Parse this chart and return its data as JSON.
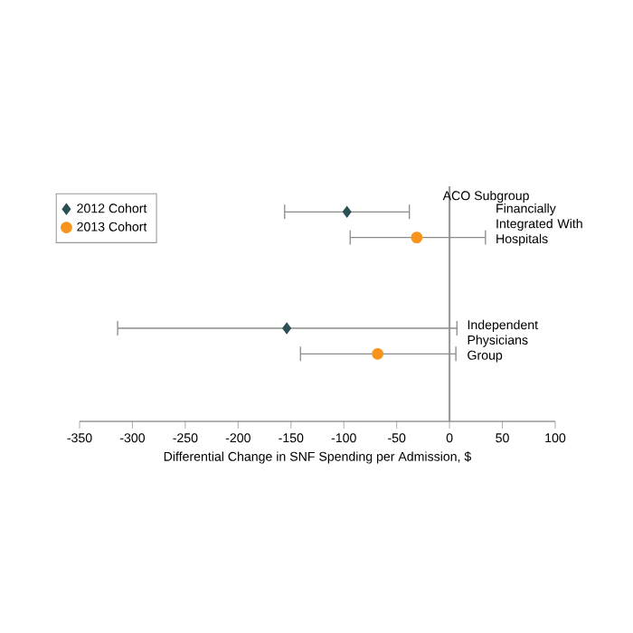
{
  "chart_data": {
    "type": "scatter",
    "orientation": "horizontal",
    "xlabel": "Differential Change in SNF Spending per Admission, $",
    "categories": [
      "Financially Integrated With Hospitals",
      "Independent Physicians Group"
    ],
    "series": [
      {
        "name": "2012 Cohort",
        "color": "#2a4f54",
        "marker": "diamond",
        "values": [
          -97,
          -154
        ],
        "errors": [
          [
            -156,
            -38
          ],
          [
            -314,
            7
          ]
        ]
      },
      {
        "name": "2013 Cohort",
        "color": "#f7941d",
        "marker": "circle",
        "values": [
          -31,
          -68
        ],
        "errors": [
          [
            -94,
            34
          ],
          [
            -141,
            6
          ]
        ]
      }
    ],
    "xlim": [
      -350,
      100
    ],
    "xticks": [
      -350,
      -300,
      -250,
      -200,
      -150,
      -100,
      -50,
      0,
      50,
      100
    ],
    "ref_lines": [
      {
        "axis": "x",
        "value": 0,
        "color": "#999999"
      }
    ],
    "annotations": [
      "ACO Subgroup"
    ],
    "legend": "top left",
    "grid": false
  }
}
